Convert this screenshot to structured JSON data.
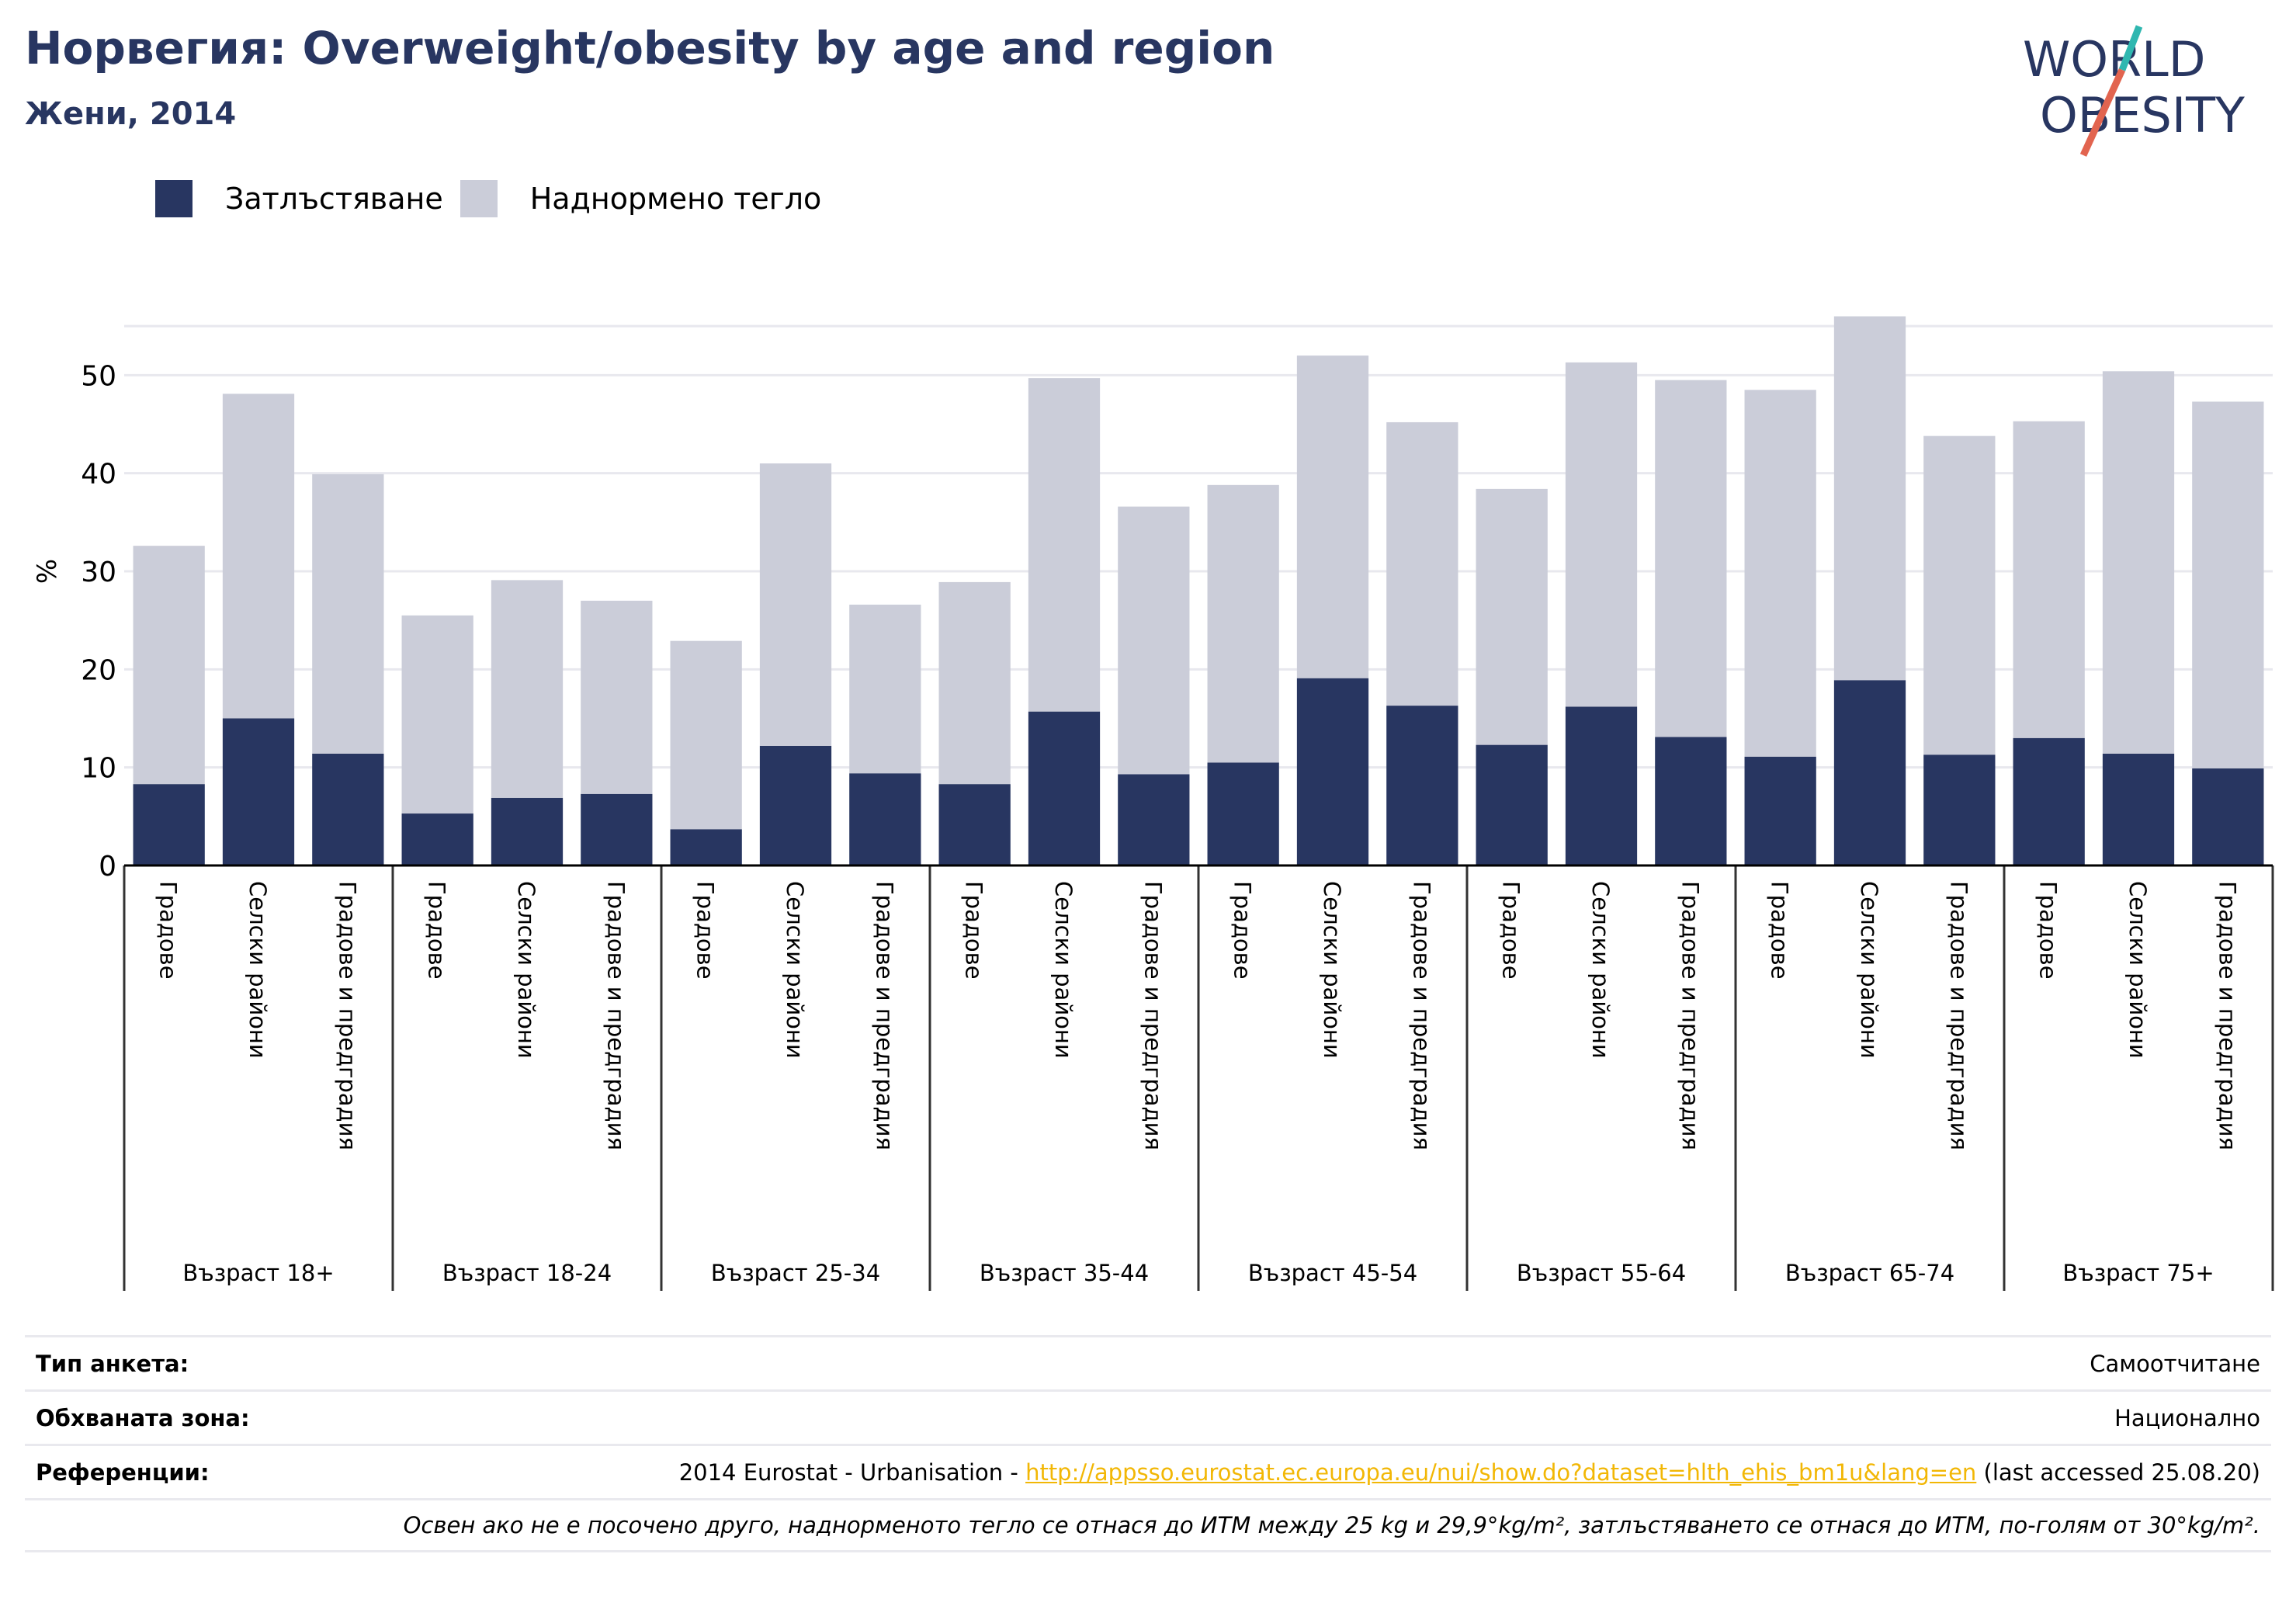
{
  "header": {
    "title": "Норвегия: Overweight/obesity by age and region",
    "subtitle": "Жени, 2014"
  },
  "logo": {
    "line1": "WORLD",
    "line2": "OBESITY",
    "name": "world-obesity-logo"
  },
  "colors": {
    "obesity": "#283661",
    "overweight": "#cbcdd9",
    "title": "#283661",
    "logo_accent_teal": "#2fb7b0",
    "logo_accent_red": "#e2644f",
    "link": "#f2b705"
  },
  "chart_data": {
    "type": "bar",
    "stacked": true,
    "title": "Норвегия: Overweight/obesity by age and region",
    "subtitle": "Жени, 2014",
    "ylabel": "%",
    "ylim": [
      0,
      60
    ],
    "yticks": [
      0,
      10,
      20,
      30,
      40,
      50
    ],
    "grid": true,
    "legend_position": "top-left",
    "groups": [
      "Възраст 18+",
      "Възраст 18-24",
      "Възраст 25-34",
      "Възраст 35-44",
      "Възраст 45-54",
      "Възраст 55-64",
      "Възраст 65-74",
      "Възраст 75+"
    ],
    "subcategories": [
      "Градове",
      "Селски райони",
      "Градове и предградия"
    ],
    "series": [
      {
        "name": "Затлъстяване",
        "values": [
          8.3,
          15.0,
          11.4,
          5.3,
          6.9,
          7.3,
          3.7,
          12.2,
          9.4,
          8.3,
          15.7,
          9.3,
          10.5,
          19.1,
          16.3,
          12.3,
          16.2,
          13.1,
          11.1,
          18.9,
          11.3,
          13.0,
          11.4,
          9.9
        ]
      },
      {
        "name": "Наднормено тегло",
        "values": [
          24.3,
          33.1,
          28.5,
          20.2,
          22.2,
          19.7,
          19.2,
          28.8,
          17.2,
          20.6,
          34.0,
          27.3,
          28.3,
          32.9,
          28.9,
          26.1,
          35.1,
          36.4,
          37.4,
          37.1,
          32.5,
          32.3,
          39.0,
          37.4
        ]
      }
    ]
  },
  "table": {
    "rows": [
      {
        "label": "Тип анкета:",
        "value": "Самоотчитане"
      },
      {
        "label": "Обхваната зона:",
        "value": "Национално"
      },
      {
        "label": "Референции:",
        "prefix": "2014 Eurostat - Urbanisation - ",
        "link": "http://appsso.eurostat.ec.europa.eu/nui/show.do?dataset=hlth_ehis_bm1u&lang=en",
        "suffix": " (last accessed 25.08.20)"
      }
    ],
    "note": "Освен ако не е посочено друго, наднорменото тегло се отнася до ИТМ между 25 kg и 29,9°kg/m², затлъстяването се отнася до ИТМ, по-голям от 30°kg/m²."
  }
}
